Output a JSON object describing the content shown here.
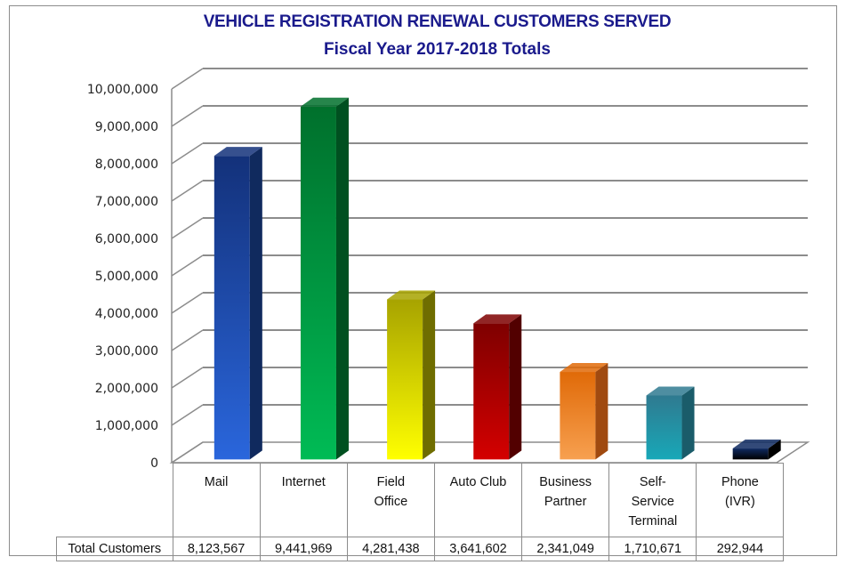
{
  "chart_data": {
    "type": "bar",
    "style": "3d-column",
    "title": "VEHICLE REGISTRATION RENEWAL CUSTOMERS SERVED",
    "subtitle": "Fiscal Year 2017-2018 Totals",
    "xlabel": "",
    "ylabel": "",
    "ylim": [
      0,
      10000000
    ],
    "ytick_step": 1000000,
    "yticks": [
      "0",
      "1,000,000",
      "2,000,000",
      "3,000,000",
      "4,000,000",
      "5,000,000",
      "6,000,000",
      "7,000,000",
      "8,000,000",
      "9,000,000",
      "10,000,000"
    ],
    "grid": true,
    "legend": "none",
    "categories": [
      {
        "label": "Mail",
        "lines": [
          "Mail"
        ]
      },
      {
        "label": "Internet",
        "lines": [
          "Internet"
        ]
      },
      {
        "label": "Field Office",
        "lines": [
          "Field",
          "Office"
        ]
      },
      {
        "label": "Auto Club",
        "lines": [
          "Auto Club"
        ]
      },
      {
        "label": "Business Partner",
        "lines": [
          "Business",
          "Partner"
        ]
      },
      {
        "label": "Self-Service Terminal",
        "lines": [
          "Self-",
          "Service",
          "Terminal"
        ]
      },
      {
        "label": "Phone (IVR)",
        "lines": [
          "Phone",
          "(IVR)"
        ]
      }
    ],
    "series": [
      {
        "name": "Total Customers",
        "values": [
          8123567,
          9441969,
          4281438,
          3641602,
          2341049,
          1710671,
          292944
        ],
        "value_labels": [
          "8,123,567",
          "9,441,969",
          "4,281,438",
          "3,641,602",
          "2,341,049",
          "1,710,671",
          "292,944"
        ]
      }
    ],
    "bar_colors": [
      {
        "top": "#13317a",
        "bottom": "#2a66dc",
        "side": "#102a5e"
      },
      {
        "top": "#00702c",
        "bottom": "#00bb55",
        "side": "#005020"
      },
      {
        "top": "#a7a300",
        "bottom": "#ffff00",
        "side": "#6f6d00"
      },
      {
        "top": "#7e0000",
        "bottom": "#d40000",
        "side": "#520000"
      },
      {
        "top": "#e06a08",
        "bottom": "#f7a050",
        "side": "#a04a10"
      },
      {
        "top": "#2f7a90",
        "bottom": "#18a8b8",
        "side": "#1a5c6a"
      },
      {
        "top": "#0f2a62",
        "bottom": "#000000",
        "side": "#000000"
      }
    ],
    "data_table": {
      "row_label": "Total Customers"
    }
  },
  "colors": {
    "title": "#1a1a8c",
    "grid": "#8c8c8c",
    "border": "#8c8c8c"
  }
}
